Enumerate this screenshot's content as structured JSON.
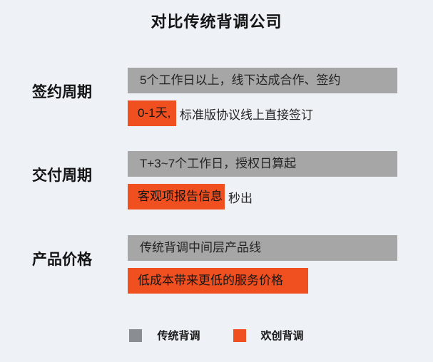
{
  "title": "对比传统背调公司",
  "colors": {
    "background": "#eef1f6",
    "traditional_bar": "#a6a6a6",
    "huanchuang_bar": "#f04f1f",
    "legend_traditional_swatch": "#8a8e92",
    "legend_huanchuang_swatch": "#f04f1f",
    "text": "#1e1e1e"
  },
  "rows": [
    {
      "label": "签约周期",
      "traditional": "5个工作日以上，线下达成合作、签约",
      "highlight": "0-1天,",
      "rest": "标准版协议线上直接签订"
    },
    {
      "label": "交付周期",
      "traditional": "T+3~7个工作日，授权日算起",
      "highlight": "客观项报告信息",
      "rest": "秒出"
    },
    {
      "label": "产品价格",
      "traditional": "传统背调中间层产品线",
      "highlight": "低成本带来更低的服务价格",
      "rest": ""
    }
  ],
  "legend": [
    {
      "label": "传统背调",
      "color": "#8a8e92"
    },
    {
      "label": "欢创背调",
      "color": "#f04f1f"
    }
  ]
}
